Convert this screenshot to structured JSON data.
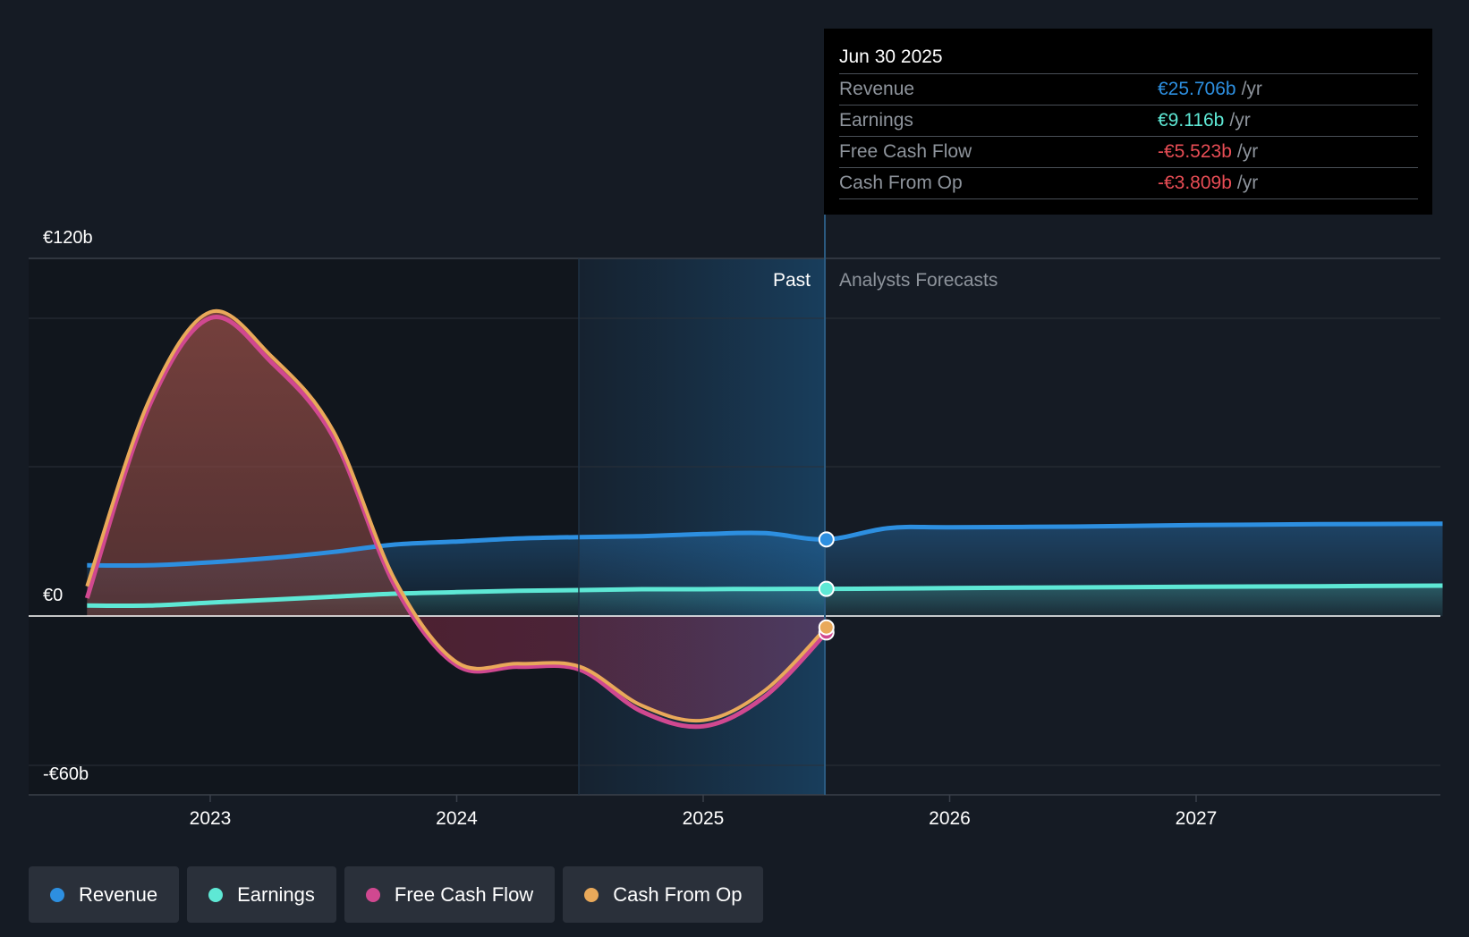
{
  "chart_data": {
    "type": "area",
    "y_tick_labels": [
      "€120b",
      "€0",
      "-€60b"
    ],
    "ylim": [
      -60,
      120
    ],
    "x_tick_labels": [
      "2023",
      "2024",
      "2025",
      "2026",
      "2027"
    ],
    "section_labels": {
      "past": "Past",
      "forecast": "Analysts Forecasts"
    },
    "tooltip": {
      "date": "Jun 30 2025",
      "unit": "/yr",
      "rows": [
        {
          "label": "Revenue",
          "value": "€25.706b",
          "color": "#2d8fe0"
        },
        {
          "label": "Earnings",
          "value": "€9.116b",
          "color": "#5ee8d5"
        },
        {
          "label": "Free Cash Flow",
          "value": "-€5.523b",
          "color": "#e84d55"
        },
        {
          "label": "Cash From Op",
          "value": "-€3.809b",
          "color": "#e84d55"
        }
      ]
    },
    "series": [
      {
        "name": "Revenue",
        "color": "#2d8fe0",
        "points": [
          [
            2022.5,
            17
          ],
          [
            2022.75,
            17
          ],
          [
            2023.0,
            18
          ],
          [
            2023.25,
            19.5
          ],
          [
            2023.5,
            21.5
          ],
          [
            2023.75,
            24
          ],
          [
            2024.0,
            25
          ],
          [
            2024.25,
            26
          ],
          [
            2024.5,
            26.5
          ],
          [
            2024.75,
            26.8
          ],
          [
            2025.0,
            27.5
          ],
          [
            2025.25,
            27.8
          ],
          [
            2025.5,
            25.706
          ],
          [
            2025.75,
            29.5
          ],
          [
            2026.0,
            29.8
          ],
          [
            2026.5,
            30
          ],
          [
            2027.0,
            30.5
          ],
          [
            2027.5,
            30.8
          ],
          [
            2028.0,
            31
          ]
        ]
      },
      {
        "name": "Earnings",
        "color": "#5ee8d5",
        "points": [
          [
            2022.5,
            3.5
          ],
          [
            2022.75,
            3.5
          ],
          [
            2023.0,
            4.5
          ],
          [
            2023.25,
            5.5
          ],
          [
            2023.5,
            6.5
          ],
          [
            2023.75,
            7.5
          ],
          [
            2024.0,
            8
          ],
          [
            2024.25,
            8.5
          ],
          [
            2024.5,
            8.7
          ],
          [
            2024.75,
            9
          ],
          [
            2025.0,
            9
          ],
          [
            2025.25,
            9.1
          ],
          [
            2025.5,
            9.116
          ],
          [
            2025.75,
            9.2
          ],
          [
            2026.0,
            9.4
          ],
          [
            2026.5,
            9.6
          ],
          [
            2027.0,
            9.8
          ],
          [
            2027.5,
            10
          ],
          [
            2028.0,
            10.2
          ]
        ]
      },
      {
        "name": "Free Cash Flow",
        "color": "#d04890",
        "points": [
          [
            2022.5,
            6
          ],
          [
            2022.75,
            70
          ],
          [
            2023.0,
            100
          ],
          [
            2023.25,
            85
          ],
          [
            2023.5,
            60
          ],
          [
            2023.75,
            10
          ],
          [
            2024.0,
            -16.5
          ],
          [
            2024.25,
            -17
          ],
          [
            2024.5,
            -18
          ],
          [
            2024.75,
            -32
          ],
          [
            2025.0,
            -37
          ],
          [
            2025.25,
            -27
          ],
          [
            2025.5,
            -5.523
          ]
        ]
      },
      {
        "name": "Cash From Op",
        "color": "#e9a95a",
        "points": [
          [
            2022.5,
            10
          ],
          [
            2022.75,
            72
          ],
          [
            2023.0,
            102
          ],
          [
            2023.25,
            87
          ],
          [
            2023.5,
            62
          ],
          [
            2023.75,
            12
          ],
          [
            2024.0,
            -15.5
          ],
          [
            2024.25,
            -16
          ],
          [
            2024.5,
            -17
          ],
          [
            2024.75,
            -30
          ],
          [
            2025.0,
            -35
          ],
          [
            2025.25,
            -25
          ],
          [
            2025.5,
            -3.809
          ]
        ]
      }
    ]
  },
  "legend": [
    {
      "label": "Revenue",
      "color": "#2d8fe0"
    },
    {
      "label": "Earnings",
      "color": "#5ee8d5"
    },
    {
      "label": "Free Cash Flow",
      "color": "#d04890"
    },
    {
      "label": "Cash From Op",
      "color": "#e9a95a"
    }
  ]
}
